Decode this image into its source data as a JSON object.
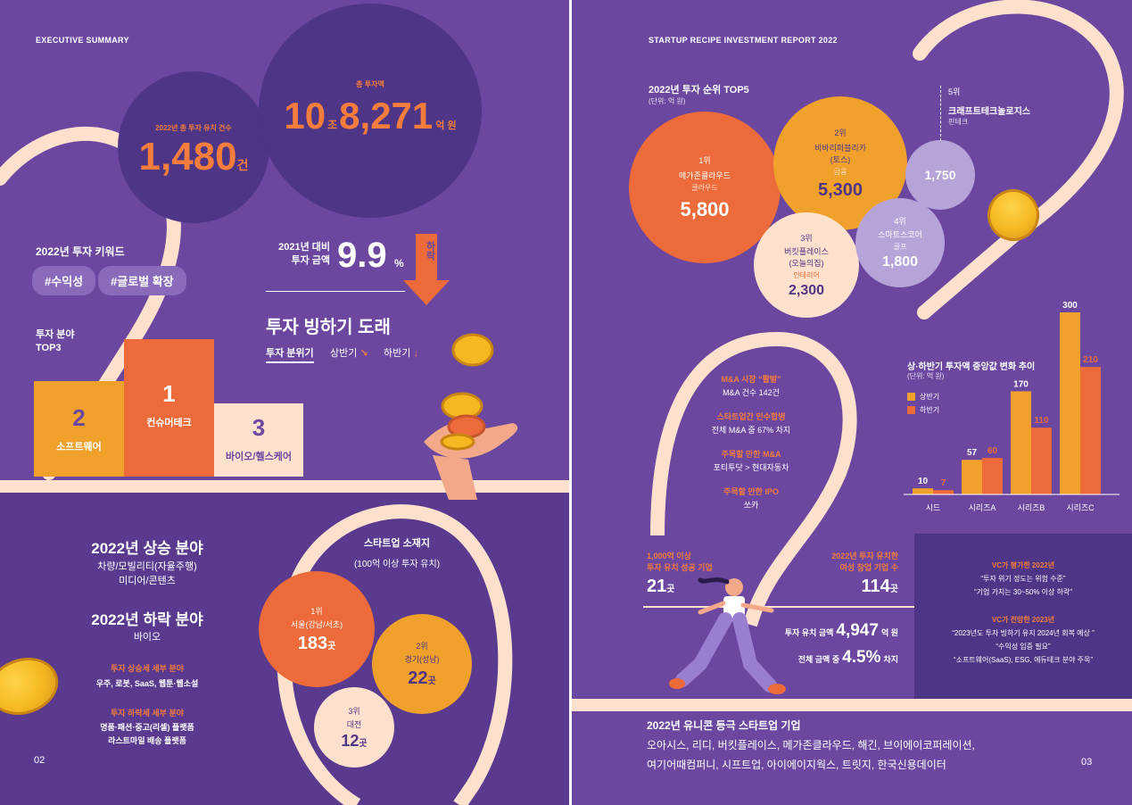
{
  "colors": {
    "purple": "#6b47a0",
    "dark_purple": "#4f3585",
    "light_purple": "#b6a3d8",
    "orange": "#ed6b3a",
    "amber": "#f0a12c",
    "cream": "#fde1cd",
    "white": "#ffffff"
  },
  "left": {
    "header": "EXECUTIVE SUMMARY",
    "page_number": "02",
    "deals": {
      "label": "2022년 총 투자 유치 건수",
      "value": "1,480",
      "unit": "건"
    },
    "total": {
      "label": "총 투자액",
      "value_a": "10",
      "unit_a": "조",
      "value_b": "8,271",
      "unit_b": "억 원"
    },
    "keywords": {
      "title": "2022년 투자 키워드",
      "tags": [
        "#수익성",
        "#글로벌 확장"
      ]
    },
    "top3": {
      "title_line1": "투자 분야",
      "title_line2": "TOP3",
      "items": [
        {
          "rank": "2",
          "name": "소프트웨어"
        },
        {
          "rank": "1",
          "name": "컨슈머테크"
        },
        {
          "rank": "3",
          "name": "바이오/헬스케어"
        }
      ]
    },
    "yoy": {
      "label_line1": "2021년 대비",
      "label_line2": "투자 금액",
      "value": "9.9",
      "unit": "%",
      "direction": "하락"
    },
    "freeze": {
      "title": "투자 빙하기 도래",
      "mood_label": "투자 분위기",
      "h1_label": "상반기",
      "h1_arrow": "↘",
      "h2_label": "하반기",
      "h2_arrow": "↓"
    },
    "rise": {
      "title": "2022년 상승 분야",
      "items": [
        "차량/모빌리티(자율주행)",
        "미디어/콘텐츠"
      ]
    },
    "fall": {
      "title": "2022년 하락 분야",
      "items": [
        "바이오"
      ]
    },
    "rise_detail": {
      "title": "투자 상승세 세부 분야",
      "text": "우주, 로봇, SaaS, 웹툰·웹소설"
    },
    "fall_detail": {
      "title": "투자 하락세 세부 분야",
      "line1": "명품·패션·중고(리셀) 플랫폼",
      "line2": "라스트마일 배송 플랫폼"
    },
    "locations": {
      "title": "스타트업 소재지",
      "subtitle": "(100억 이상 투자 유치)",
      "items": [
        {
          "rank": "1위",
          "name": "서울(강남/서초)",
          "count": "183",
          "unit": "곳"
        },
        {
          "rank": "2위",
          "name": "경기(성남)",
          "count": "22",
          "unit": "곳"
        },
        {
          "rank": "3위",
          "name": "대전",
          "count": "12",
          "unit": "곳"
        }
      ]
    }
  },
  "right": {
    "header": "STARTUP RECIPE INVESTMENT REPORT 2022",
    "page_number": "03",
    "top5": {
      "title": "2022년 투자 순위 TOP5",
      "unit_note": "(단위: 억 원)",
      "items": [
        {
          "rank": "1위",
          "name": "메가존클라우드",
          "category": "클라우드",
          "value": "5,800"
        },
        {
          "rank": "2위",
          "name_line1": "비바리퍼블리카",
          "name_line2": "(토스)",
          "category": "금융",
          "value": "5,300"
        },
        {
          "rank": "3위",
          "name_line1": "버킷플레이스",
          "name_line2": "(오늘의집)",
          "category": "인테리어",
          "value": "2,300"
        },
        {
          "rank": "4위",
          "name": "스마트스코어",
          "category": "골프",
          "value": "1,800"
        },
        {
          "rank": "5위",
          "name": "크래프트테크놀로지스",
          "category": "핀테크",
          "value": "1,750"
        }
      ]
    },
    "mna": {
      "items": [
        {
          "title": "M&A 시장 “활발”",
          "text": "M&A 건수 142건"
        },
        {
          "title": "스타트업간 인수합병",
          "text": "전체 M&A 중 67% 차지"
        },
        {
          "title": "주목할 만한 M&A",
          "text": "포티투닷 > 현대자동차"
        },
        {
          "title": "주목할 만한 IPO",
          "text": "쏘카"
        }
      ]
    },
    "big_funding": {
      "label_line1": "1,000억 이상",
      "label_line2": "투자 유치 성공 기업",
      "value": "21",
      "unit": "곳"
    },
    "female": {
      "label_line1": "2022년 투자 유치한",
      "label_line2": "여성 창업 기업 수",
      "value": "114",
      "unit": "곳",
      "amount_label": "투자 유치 금액",
      "amount_value": "4,947",
      "amount_unit": "억 원",
      "share_label": "전체 금액 중",
      "share_value": "4.5%",
      "share_unit": "차지"
    },
    "vc_eval": {
      "title": "VC가 평가한 2022년",
      "line1": "“투자 위기 정도는 위험 수준”",
      "line2": "“기업 가치는 30~50% 이상 하락”"
    },
    "vc_outlook": {
      "title": "VC가 전망한 2023년",
      "line1": "“2023년도 투자 빙하기 유지 2024년 회복 예상 ”",
      "line2": "“수익성 입증 필요”",
      "line3": "“소프트웨어(SaaS), ESG, 에듀테크 분야 주목”"
    },
    "unicorn": {
      "title": "2022년 유니콘 등극 스타트업 기업",
      "line1": "오아시스, 리디, 버킷플레이스, 메가존클라우드, 해긴, 브이에이코퍼레이션,",
      "line2": "여기어때컴퍼니, 시프트업, 아이에이지웍스, 트릿지, 한국신용데이터"
    }
  },
  "chart_data": {
    "type": "bar",
    "title": "상·하반기 투자액 중앙값 변화 추이",
    "unit_note": "(단위: 억 원)",
    "categories": [
      "시드",
      "시리즈A",
      "시리즈B",
      "시리즈C"
    ],
    "series": [
      {
        "name": "상반기",
        "color": "#f0a12c",
        "values": [
          10,
          57,
          170,
          300
        ]
      },
      {
        "name": "하반기",
        "color": "#ed6b3a",
        "values": [
          7,
          60,
          110,
          210
        ]
      }
    ],
    "ylim": [
      0,
      300
    ],
    "legend": "top-left",
    "grid": false
  }
}
